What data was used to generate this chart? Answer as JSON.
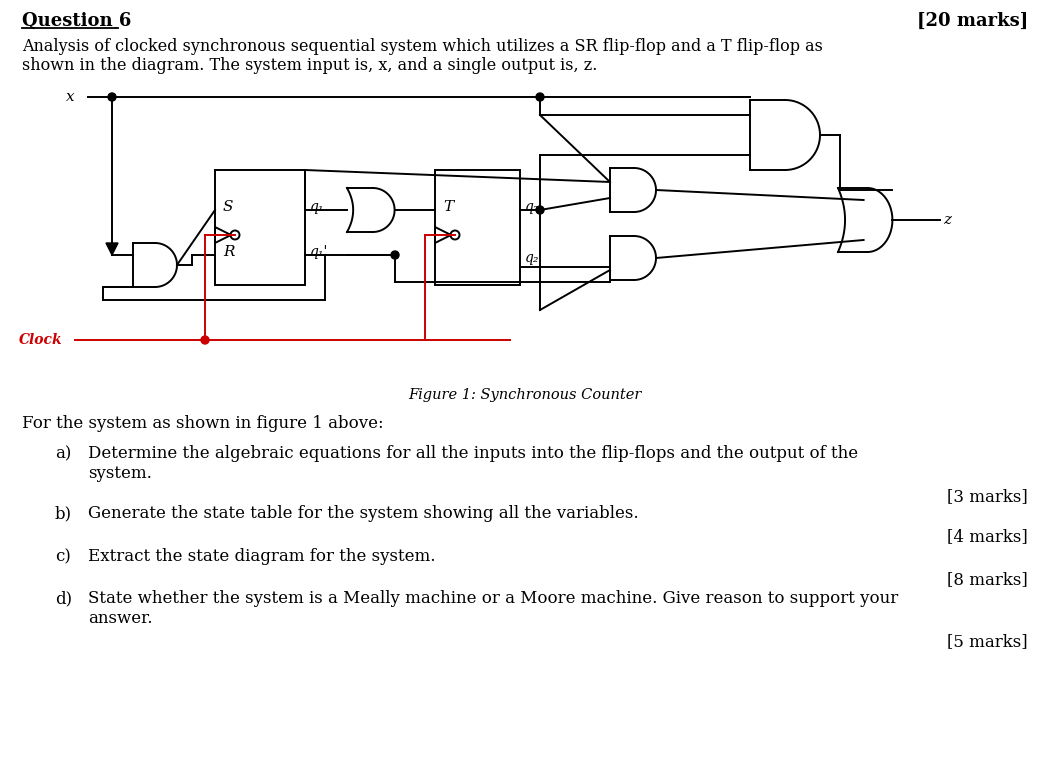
{
  "title_left": "Question 6",
  "title_right": "[20 marks]",
  "desc_line1": "Analysis of clocked synchronous sequential system which utilizes a SR flip-flop and a T flip-flop as",
  "desc_line2": "shown in the diagram. The system input is, x, and a single output is, z.",
  "figure_caption": "Figure 1: Synchronous Counter",
  "question_intro": "For the system as shown in figure 1 above:",
  "q_a_text1": "Determine the algebraic equations for all the inputs into the flip-flops and the output of the",
  "q_a_text2": "system.",
  "q_a_marks": "[3 marks]",
  "q_b_text": "Generate the state table for the system showing all the variables.",
  "q_b_marks": "[4 marks]",
  "q_c_text": "Extract the state diagram for the system.",
  "q_c_marks": "[8 marks]",
  "q_d_text1": "State whether the system is a Meally machine or a Moore machine. Give reason to support your",
  "q_d_text2": "answer.",
  "q_d_marks": "[5 marks]",
  "bg_color": "#ffffff",
  "text_color": "#000000",
  "clock_color": "#cc0000",
  "wire_color": "#000000",
  "lw": 1.4
}
